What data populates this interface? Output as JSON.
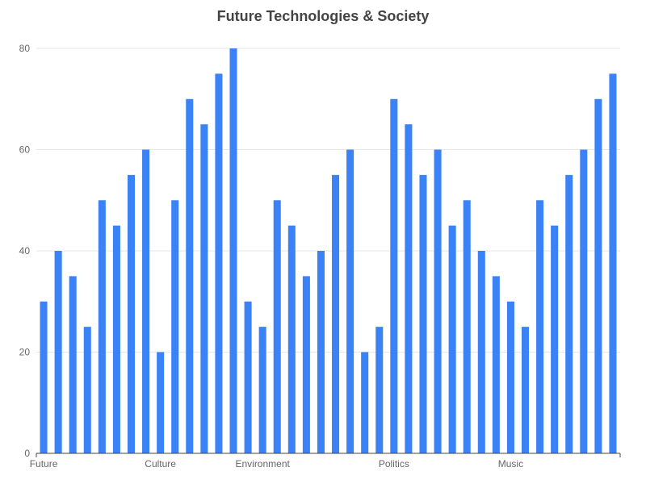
{
  "chart_data": {
    "type": "bar",
    "title": "Future Technologies & Society",
    "xlabel": "",
    "ylabel": "",
    "ylim": [
      0,
      80
    ],
    "yticks": [
      0,
      20,
      40,
      60,
      80
    ],
    "grid": true,
    "color": "#3b82f6",
    "axis_color": "#444444",
    "grid_color": "#e6e6e6",
    "categories": [
      "Future",
      "",
      "",
      "",
      "",
      "",
      "",
      "",
      "Culture",
      "",
      "",
      "",
      "",
      "",
      "",
      "Environment",
      "",
      "",
      "",
      "",
      "",
      "",
      "",
      "",
      "Politics",
      "",
      "",
      "",
      "",
      "",
      "",
      "",
      "Music",
      "",
      "",
      "",
      "",
      "",
      "",
      ""
    ],
    "values": [
      30,
      40,
      35,
      25,
      50,
      45,
      55,
      60,
      20,
      50,
      70,
      65,
      75,
      80,
      30,
      25,
      50,
      45,
      35,
      40,
      55,
      60,
      20,
      25,
      70,
      65,
      55,
      60,
      45,
      50,
      40,
      35,
      30,
      25,
      50,
      45,
      55,
      60,
      70,
      75
    ]
  }
}
